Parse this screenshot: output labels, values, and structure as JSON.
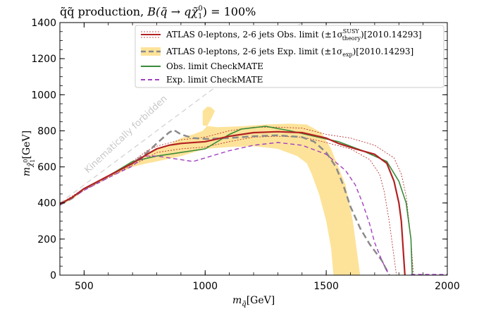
{
  "chart_data": {
    "type": "line",
    "title": "q̃q̃ production, B(q̃ → qχ̃₁⁰) = 100%",
    "xlabel": "m_q̃[GeV]",
    "ylabel": "m_χ̃₁⁰[GeV]",
    "xlim": [
      400,
      2000
    ],
    "ylim": [
      0,
      1400
    ],
    "xticks": [
      500,
      1000,
      1500,
      2000
    ],
    "yticks": [
      0,
      200,
      400,
      600,
      800,
      1000,
      1200,
      1400
    ],
    "legend_position": "top-right",
    "annotation": "Kinematically forbidden",
    "expected_band": {
      "upper": [
        [
          400,
          395
        ],
        [
          450,
          430
        ],
        [
          500,
          480
        ],
        [
          600,
          550
        ],
        [
          700,
          620
        ],
        [
          760,
          675
        ],
        [
          800,
          700
        ],
        [
          850,
          720
        ],
        [
          900,
          760
        ],
        [
          950,
          780
        ],
        [
          990,
          800
        ],
        [
          1010,
          830
        ],
        [
          1030,
          880
        ],
        [
          1040,
          910
        ],
        [
          1025,
          930
        ],
        [
          1010,
          935
        ],
        [
          990,
          910
        ],
        [
          990,
          830
        ],
        [
          1050,
          820
        ],
        [
          1150,
          825
        ],
        [
          1250,
          835
        ],
        [
          1350,
          840
        ],
        [
          1420,
          835
        ],
        [
          1480,
          790
        ],
        [
          1520,
          700
        ],
        [
          1550,
          600
        ],
        [
          1580,
          500
        ],
        [
          1610,
          300
        ],
        [
          1630,
          100
        ],
        [
          1640,
          0
        ]
      ],
      "lower": [
        [
          400,
          385
        ],
        [
          450,
          420
        ],
        [
          500,
          470
        ],
        [
          600,
          540
        ],
        [
          700,
          600
        ],
        [
          760,
          620
        ],
        [
          800,
          630
        ],
        [
          900,
          660
        ],
        [
          950,
          680
        ],
        [
          1000,
          700
        ],
        [
          1100,
          710
        ],
        [
          1200,
          715
        ],
        [
          1300,
          700
        ],
        [
          1380,
          660
        ],
        [
          1420,
          620
        ],
        [
          1440,
          560
        ],
        [
          1470,
          450
        ],
        [
          1500,
          300
        ],
        [
          1520,
          150
        ],
        [
          1530,
          0
        ]
      ]
    },
    "series": [
      {
        "name": "ATLAS 0-leptons, 2-6 jets Obs. limit (±1σ theory SUSY)[2010.14293]",
        "color": "#b22222",
        "width": 2.2,
        "dash": "",
        "points": [
          [
            400,
            395
          ],
          [
            450,
            430
          ],
          [
            500,
            480
          ],
          [
            600,
            550
          ],
          [
            700,
            620
          ],
          [
            760,
            670
          ],
          [
            800,
            700
          ],
          [
            850,
            720
          ],
          [
            900,
            730
          ],
          [
            1000,
            740
          ],
          [
            1100,
            770
          ],
          [
            1200,
            790
          ],
          [
            1300,
            795
          ],
          [
            1400,
            790
          ],
          [
            1500,
            760
          ],
          [
            1550,
            730
          ],
          [
            1620,
            700
          ],
          [
            1700,
            670
          ],
          [
            1750,
            620
          ],
          [
            1780,
            520
          ],
          [
            1800,
            400
          ],
          [
            1810,
            300
          ],
          [
            1820,
            100
          ],
          [
            1825,
            0
          ]
        ]
      },
      {
        "name": "",
        "color": "#b22222",
        "width": 0.8,
        "dash": "2,2",
        "points": [
          [
            400,
            395
          ],
          [
            500,
            480
          ],
          [
            600,
            550
          ],
          [
            700,
            630
          ],
          [
            760,
            690
          ],
          [
            800,
            715
          ],
          [
            900,
            750
          ],
          [
            1000,
            765
          ],
          [
            1100,
            800
          ],
          [
            1200,
            820
          ],
          [
            1300,
            820
          ],
          [
            1400,
            815
          ],
          [
            1500,
            780
          ],
          [
            1600,
            760
          ],
          [
            1700,
            720
          ],
          [
            1780,
            650
          ],
          [
            1810,
            560
          ],
          [
            1830,
            440
          ],
          [
            1850,
            200
          ],
          [
            1860,
            0
          ]
        ]
      },
      {
        "name": "",
        "color": "#b22222",
        "width": 0.8,
        "dash": "2,2",
        "points": [
          [
            400,
            390
          ],
          [
            500,
            470
          ],
          [
            600,
            540
          ],
          [
            700,
            610
          ],
          [
            760,
            650
          ],
          [
            800,
            680
          ],
          [
            900,
            700
          ],
          [
            1000,
            710
          ],
          [
            1100,
            740
          ],
          [
            1200,
            765
          ],
          [
            1300,
            770
          ],
          [
            1400,
            765
          ],
          [
            1500,
            735
          ],
          [
            1600,
            700
          ],
          [
            1680,
            640
          ],
          [
            1720,
            560
          ],
          [
            1740,
            460
          ],
          [
            1760,
            300
          ],
          [
            1780,
            100
          ],
          [
            1790,
            0
          ]
        ]
      },
      {
        "name": "ATLAS 0-leptons, 2-6 jets Exp. limit (±1σ exp)[2010.14293]",
        "color": "#8a8a8a",
        "width": 2.5,
        "dash": "9,5",
        "points": [
          [
            400,
            390
          ],
          [
            450,
            425
          ],
          [
            500,
            475
          ],
          [
            600,
            550
          ],
          [
            700,
            620
          ],
          [
            760,
            680
          ],
          [
            800,
            730
          ],
          [
            850,
            790
          ],
          [
            870,
            805
          ],
          [
            900,
            780
          ],
          [
            950,
            760
          ],
          [
            1000,
            755
          ],
          [
            1100,
            760
          ],
          [
            1200,
            770
          ],
          [
            1300,
            775
          ],
          [
            1400,
            765
          ],
          [
            1450,
            740
          ],
          [
            1500,
            680
          ],
          [
            1540,
            600
          ],
          [
            1570,
            500
          ],
          [
            1600,
            380
          ],
          [
            1640,
            260
          ],
          [
            1680,
            170
          ],
          [
            1730,
            80
          ],
          [
            1760,
            0
          ]
        ]
      },
      {
        "name": "Obs. limit CheckMATE",
        "color": "#3a8a3a",
        "width": 1.6,
        "dash": "",
        "points": [
          [
            400,
            390
          ],
          [
            450,
            430
          ],
          [
            500,
            480
          ],
          [
            600,
            550
          ],
          [
            700,
            630
          ],
          [
            800,
            660
          ],
          [
            900,
            680
          ],
          [
            1000,
            700
          ],
          [
            1050,
            740
          ],
          [
            1100,
            780
          ],
          [
            1150,
            810
          ],
          [
            1250,
            825
          ],
          [
            1350,
            800
          ],
          [
            1450,
            770
          ],
          [
            1550,
            740
          ],
          [
            1650,
            690
          ],
          [
            1750,
            630
          ],
          [
            1800,
            520
          ],
          [
            1830,
            400
          ],
          [
            1850,
            200
          ],
          [
            1855,
            0
          ]
        ]
      },
      {
        "name": "Exp. limit CheckMATE",
        "color": "#a040c0",
        "width": 1.4,
        "dash": "6,4",
        "points": [
          [
            400,
            390
          ],
          [
            500,
            470
          ],
          [
            600,
            540
          ],
          [
            700,
            605
          ],
          [
            750,
            660
          ],
          [
            800,
            660
          ],
          [
            900,
            640
          ],
          [
            950,
            630
          ],
          [
            1000,
            650
          ],
          [
            1100,
            690
          ],
          [
            1200,
            720
          ],
          [
            1300,
            735
          ],
          [
            1400,
            720
          ],
          [
            1500,
            670
          ],
          [
            1580,
            580
          ],
          [
            1620,
            500
          ],
          [
            1650,
            400
          ],
          [
            1680,
            280
          ],
          [
            1700,
            180
          ],
          [
            1730,
            80
          ],
          [
            1760,
            0
          ]
        ]
      }
    ],
    "diagonal_line": [
      [
        400,
        400
      ],
      [
        1400,
        1400
      ]
    ],
    "zero_line_tail": {
      "x": [
        1850,
        2000
      ],
      "y": 0
    }
  },
  "legend": [
    {
      "label": "ATLAS 0-leptons, 2-6 jets Obs. limit (±1σ",
      "sup": "SUSY",
      "sub": "theory",
      "suffix": ")[2010.14293]"
    },
    {
      "label": "ATLAS 0-leptons, 2-6 jets Exp. limit (±1σ",
      "sub": "exp",
      "suffix": ")[2010.14293]"
    },
    {
      "label": "Obs. limit CheckMATE"
    },
    {
      "label": "Exp. limit CheckMATE"
    }
  ],
  "title_parts": {
    "pre": "q̃q̃ production, ",
    "math": "B(q̃ → qχ̃",
    "sub": "1",
    "sup": "0",
    "post": ") = 100%"
  },
  "axes": {
    "xlabel_main": "m",
    "xlabel_sub": "q̃",
    "xlabel_unit": "[GeV]",
    "ylabel_main": "m",
    "ylabel_sub": "χ̃",
    "ylabel_subsub": "1",
    "ylabel_sup": "0",
    "ylabel_unit": "[GeV]"
  },
  "colors": {
    "band": "#fde39a",
    "diagonal": "#cfcfcf"
  }
}
